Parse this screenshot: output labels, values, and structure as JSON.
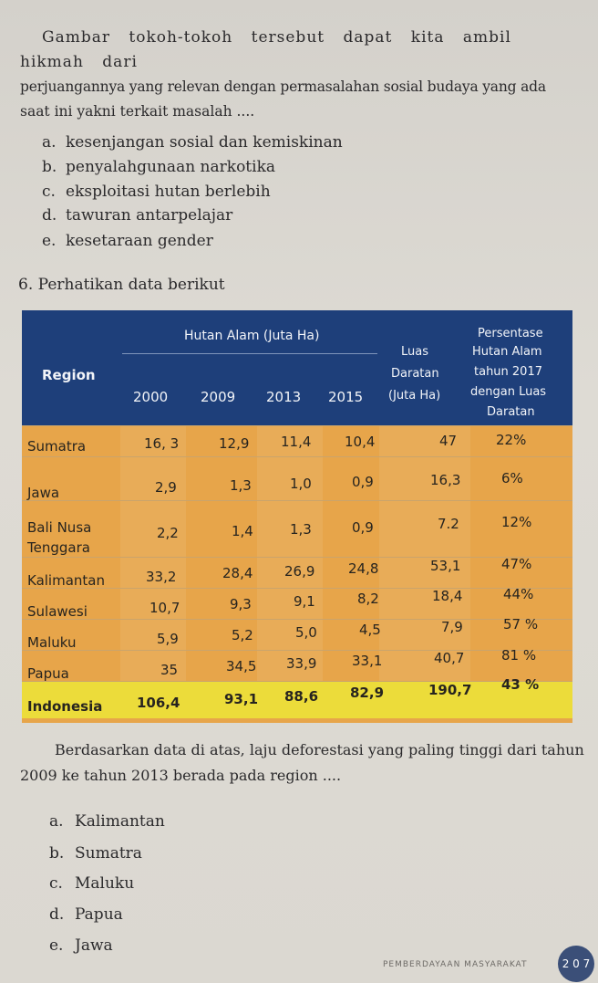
{
  "intro": {
    "line1": "Gambar tokoh-tokoh tersebut dapat kita ambil hikmah dari",
    "line2": "perjuangannya yang relevan dengan permasalahan sosial budaya yang ada",
    "line3": "saat ini yakni terkait masalah ...."
  },
  "q5_options": [
    {
      "key": "a.",
      "text": "kesenjangan sosial dan kemiskinan"
    },
    {
      "key": "b.",
      "text": "penyalahgunaan narkotika"
    },
    {
      "key": "c.",
      "text": "eksploitasi hutan berlebih"
    },
    {
      "key": "d.",
      "text": "tawuran antarpelajar"
    },
    {
      "key": "e.",
      "text": "kesetaraan gender"
    }
  ],
  "q6": {
    "number": "6.",
    "prompt": "Perhatikan data berikut"
  },
  "table": {
    "header": {
      "region": "Region",
      "hutan_alam": "Hutan Alam (Juta Ha)",
      "years": [
        "2000",
        "2009",
        "2013",
        "2015"
      ],
      "luas_l1": "Luas",
      "luas_l2": "Daratan",
      "luas_l3": "(Juta Ha)",
      "pct_l1": "Persentase",
      "pct_l2": "Hutan Alam",
      "pct_l3": "tahun 2017",
      "pct_l4": "dengan Luas",
      "pct_l5": "Daratan"
    },
    "rows": [
      {
        "region": "Sumatra",
        "region2": "",
        "y2000": "16, 3",
        "y2009": "12,9",
        "y2013": "11,4",
        "y2015": "10,4",
        "luas": "47",
        "pct": "22%"
      },
      {
        "region": "Jawa",
        "region2": "",
        "y2000": "2,9",
        "y2009": "1,3",
        "y2013": "1,0",
        "y2015": "0,9",
        "luas": "16,3",
        "pct": "6%"
      },
      {
        "region": "Bali Nusa",
        "region2": "Tenggara",
        "y2000": "2,2",
        "y2009": "1,4",
        "y2013": "1,3",
        "y2015": "0,9",
        "luas": "7.2",
        "pct": "12%"
      },
      {
        "region": "Kalimantan",
        "region2": "",
        "y2000": "33,2",
        "y2009": "28,4",
        "y2013": "26,9",
        "y2015": "24,8",
        "luas": "53,1",
        "pct": "47%"
      },
      {
        "region": "Sulawesi",
        "region2": "",
        "y2000": "10,7",
        "y2009": "9,3",
        "y2013": "9,1",
        "y2015": "8,2",
        "luas": "18,4",
        "pct": "44%"
      },
      {
        "region": "Maluku",
        "region2": "",
        "y2000": "5,9",
        "y2009": "5,2",
        "y2013": "5,0",
        "y2015": "4,5",
        "luas": "7,9",
        "pct": "57 %"
      },
      {
        "region": "Papua",
        "region2": "",
        "y2000": "35",
        "y2009": "34,5",
        "y2013": "33,9",
        "y2015": "33,1",
        "luas": "40,7",
        "pct": "81 %"
      },
      {
        "region": "Indonesia",
        "region2": "",
        "y2000": "106,4",
        "y2009": "93,1",
        "y2013": "88,6",
        "y2015": "82,9",
        "luas": "190,7",
        "pct": "43 %"
      }
    ]
  },
  "para": {
    "line1": "Berdasarkan data di atas, laju deforestasi yang paling tinggi dari tahun",
    "line2": "2009 ke tahun 2013 berada pada region ...."
  },
  "q6_options": [
    {
      "key": "a.",
      "text": "Kalimantan"
    },
    {
      "key": "b.",
      "text": "Sumatra"
    },
    {
      "key": "c.",
      "text": "Maluku"
    },
    {
      "key": "d.",
      "text": "Papua"
    },
    {
      "key": "e.",
      "text": "Jawa"
    }
  ],
  "footer": {
    "text": "PEMBERDAYAAN MASYARAKAT",
    "page": "2 0 7"
  },
  "colors": {
    "header": "#1e3f7a",
    "body": "#e7a54a",
    "highlight": "#ecdc3a"
  }
}
